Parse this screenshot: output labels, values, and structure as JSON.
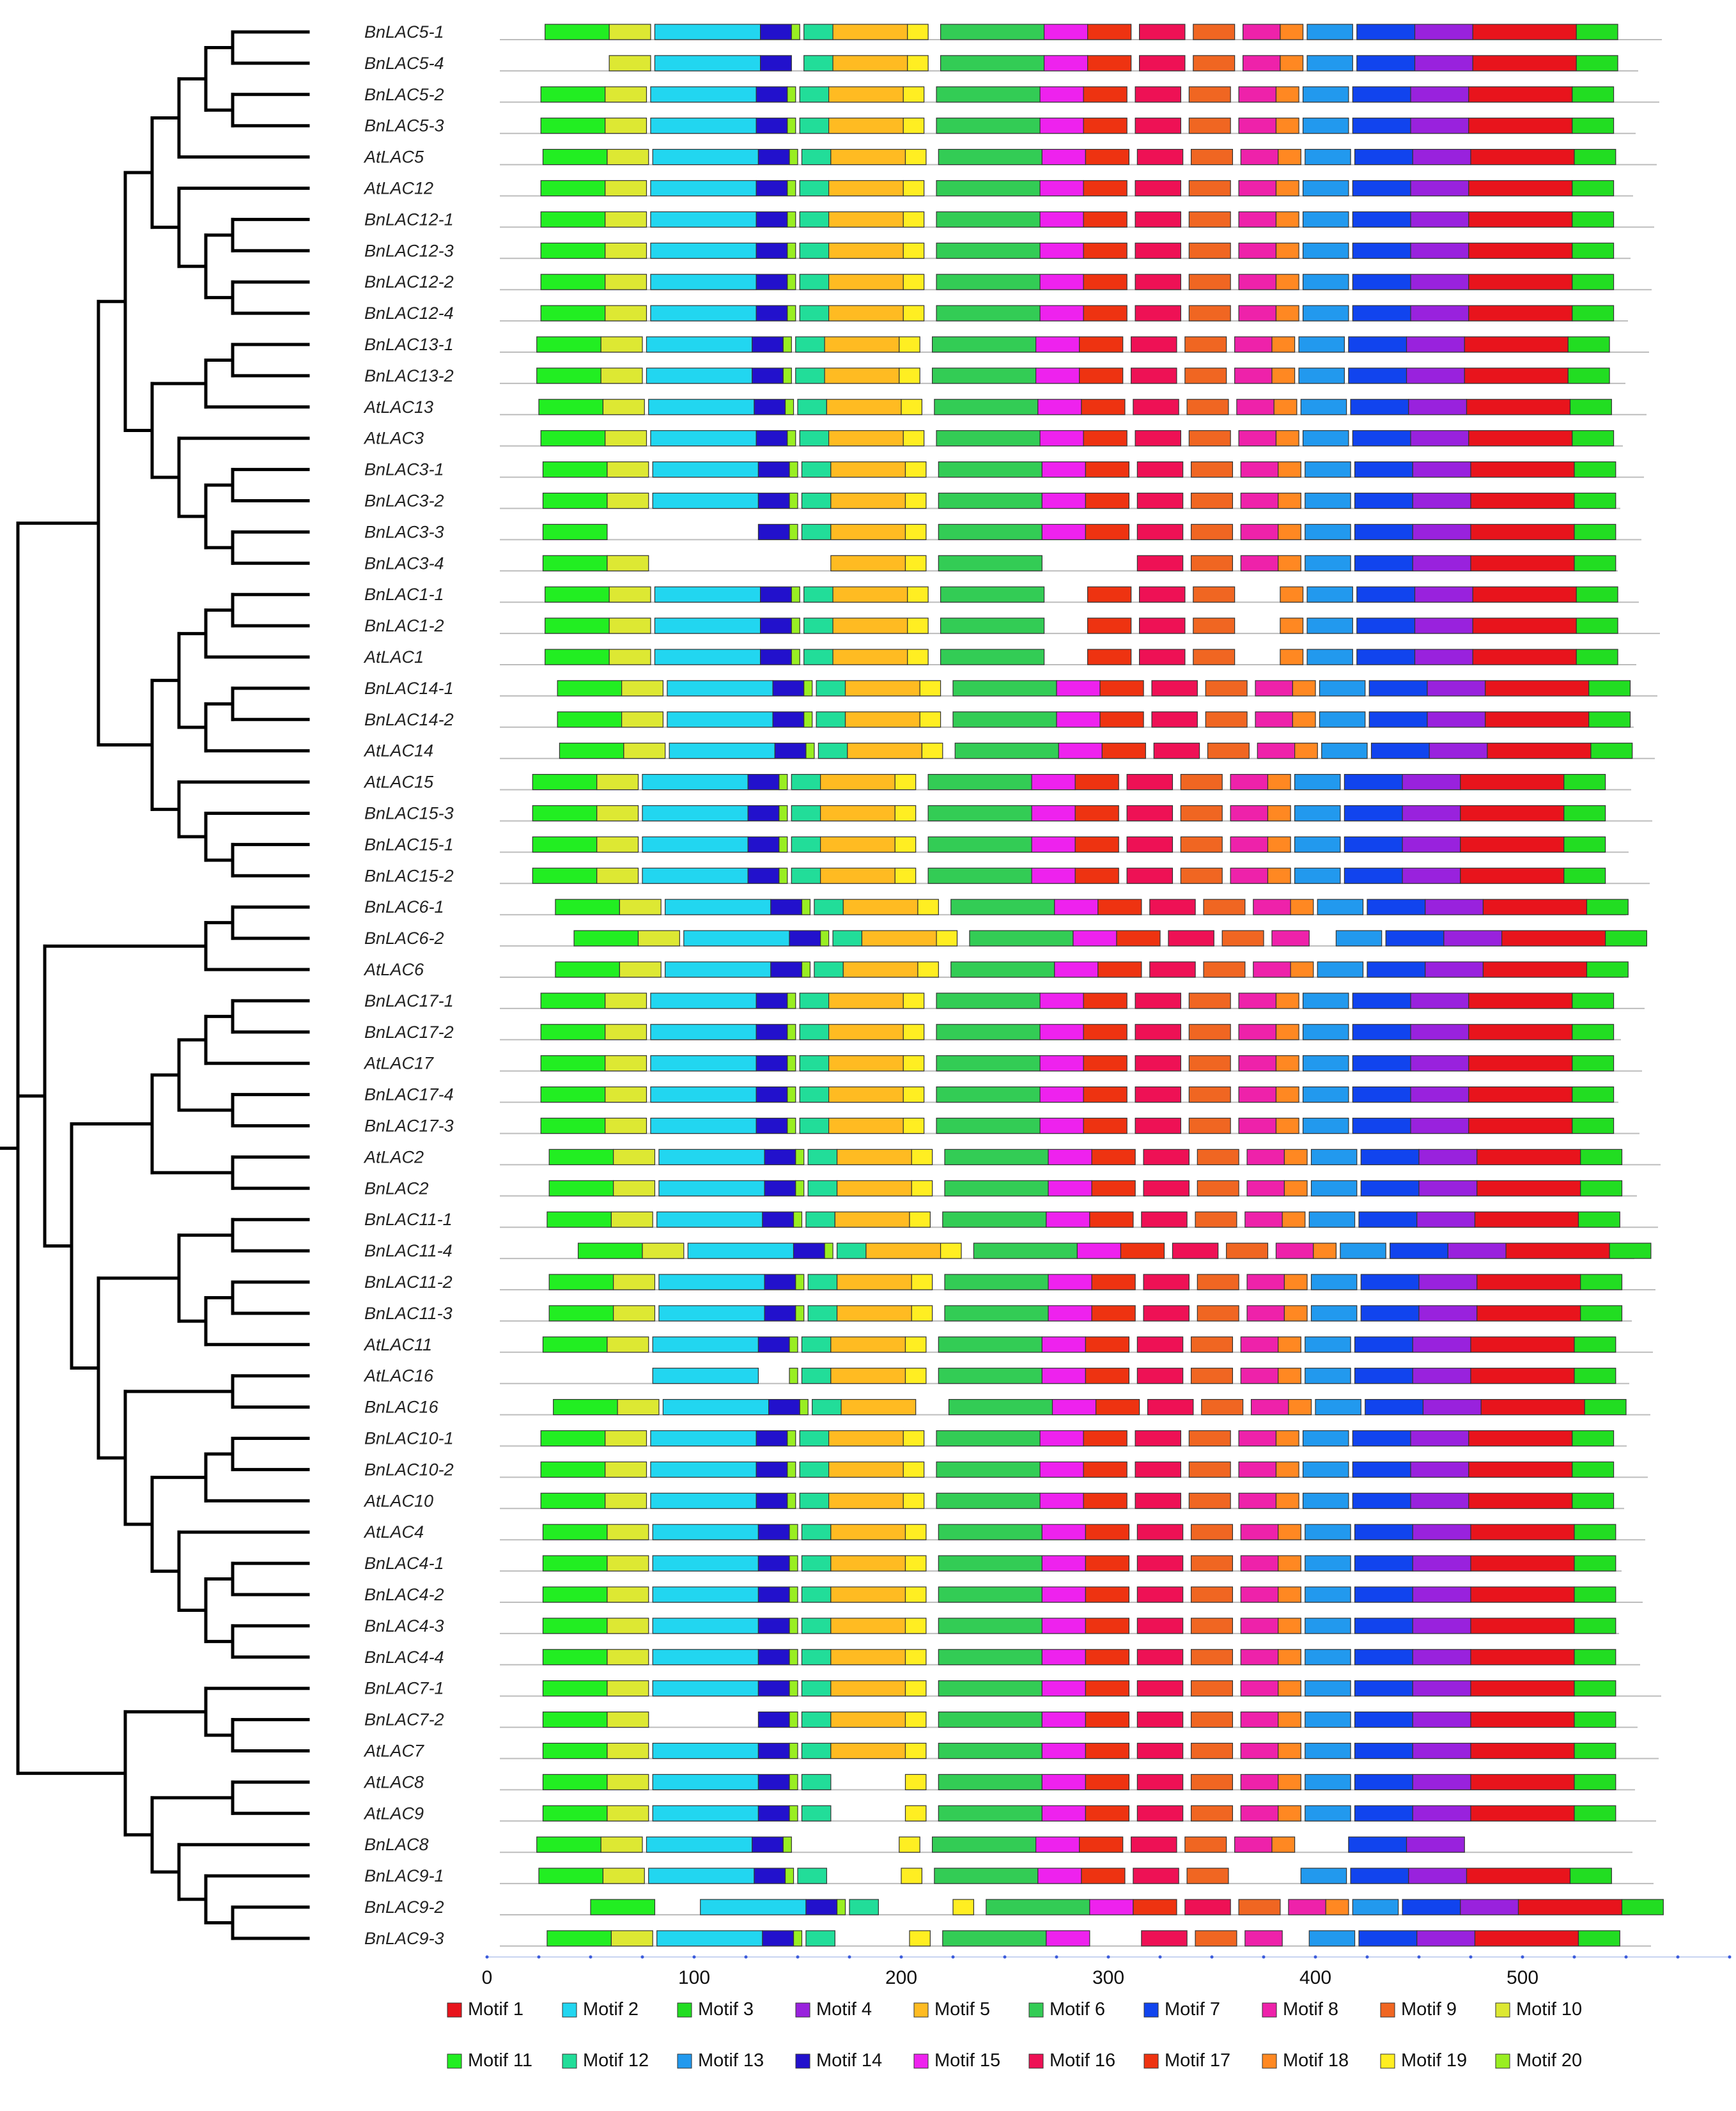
{
  "figure": {
    "type": "phylogeny-motif-diagram",
    "background": "#ffffff"
  },
  "genes": [
    "BnLAC5-1",
    "BnLAC5-4",
    "BnLAC5-2",
    "BnLAC5-3",
    "AtLAC5",
    "AtLAC12",
    "BnLAC12-1",
    "BnLAC12-3",
    "BnLAC12-2",
    "BnLAC12-4",
    "BnLAC13-1",
    "BnLAC13-2",
    "AtLAC13",
    "AtLAC3",
    "BnLAC3-1",
    "BnLAC3-2",
    "BnLAC3-3",
    "BnLAC3-4",
    "BnLAC1-1",
    "BnLAC1-2",
    "AtLAC1",
    "BnLAC14-1",
    "BnLAC14-2",
    "AtLAC14",
    "AtLAC15",
    "BnLAC15-3",
    "BnLAC15-1",
    "BnLAC15-2",
    "BnLAC6-1",
    "BnLAC6-2",
    "AtLAC6",
    "BnLAC17-1",
    "BnLAC17-2",
    "AtLAC17",
    "BnLAC17-4",
    "BnLAC17-3",
    "AtLAC2",
    "BnLAC2",
    "BnLAC11-1",
    "BnLAC11-4",
    "BnLAC11-2",
    "BnLAC11-3",
    "AtLAC11",
    "AtLAC16",
    "BnLAC16",
    "BnLAC10-1",
    "BnLAC10-2",
    "AtLAC10",
    "AtLAC4",
    "BnLAC4-1",
    "BnLAC4-2",
    "BnLAC4-3",
    "BnLAC4-4",
    "BnLAC7-1",
    "BnLAC7-2",
    "AtLAC7",
    "AtLAC8",
    "AtLAC9",
    "BnLAC8",
    "BnLAC9-1",
    "BnLAC9-2",
    "BnLAC9-3"
  ],
  "axis": {
    "ticks": [
      0,
      100,
      200,
      300,
      400,
      500
    ],
    "tick_labels": [
      "0",
      "100",
      "200",
      "300",
      "400",
      "500"
    ],
    "range": [
      0,
      600
    ],
    "color": "#3b5bdb"
  },
  "motifs": [
    {
      "name": "Motif 1",
      "color": "#e8141c"
    },
    {
      "name": "Motif 2",
      "color": "#22d6f0"
    },
    {
      "name": "Motif 3",
      "color": "#22dd22"
    },
    {
      "name": "Motif 4",
      "color": "#9922dd"
    },
    {
      "name": "Motif 5",
      "color": "#ffbb22"
    },
    {
      "name": "Motif 6",
      "color": "#33cc55"
    },
    {
      "name": "Motif 7",
      "color": "#1144ee"
    },
    {
      "name": "Motif 8",
      "color": "#ee22aa"
    },
    {
      "name": "Motif 9",
      "color": "#f06622"
    },
    {
      "name": "Motif 10",
      "color": "#dde833"
    },
    {
      "name": "Motif 11",
      "color": "#22ee22"
    },
    {
      "name": "Motif 12",
      "color": "#22dd99"
    },
    {
      "name": "Motif 13",
      "color": "#2299ee"
    },
    {
      "name": "Motif 14",
      "color": "#2211cc"
    },
    {
      "name": "Motif 15",
      "color": "#ee22ee"
    },
    {
      "name": "Motif 16",
      "color": "#ee1155"
    },
    {
      "name": "Motif 17",
      "color": "#ee3311"
    },
    {
      "name": "Motif 18",
      "color": "#ff8822"
    },
    {
      "name": "Motif 19",
      "color": "#ffee22"
    },
    {
      "name": "Motif 20",
      "color": "#99ee22"
    }
  ],
  "motif_order": [
    11,
    10,
    2,
    14,
    20,
    12,
    5,
    19,
    6,
    15,
    17,
    16,
    9,
    8,
    18,
    13,
    7,
    4,
    1,
    3
  ],
  "motif_widths": [
    31,
    20,
    51,
    15,
    4,
    14,
    36,
    10,
    50,
    21,
    21,
    22,
    20,
    18,
    11,
    22,
    28,
    28,
    50,
    20
  ],
  "motif_gaps": [
    0,
    0,
    2,
    0,
    0,
    2,
    0,
    0,
    6,
    0,
    0,
    4,
    4,
    4,
    0,
    2,
    2,
    0,
    0,
    0
  ],
  "gene_offsets": [
    28,
    28,
    26,
    26,
    27,
    26,
    26,
    26,
    26,
    26,
    24,
    24,
    25,
    26,
    27,
    27,
    27,
    27,
    28,
    28,
    28,
    34,
    34,
    35,
    22,
    22,
    22,
    22,
    33,
    42,
    33,
    26,
    26,
    26,
    26,
    26,
    30,
    30,
    29,
    44,
    30,
    30,
    27,
    27,
    32,
    26,
    26,
    26,
    27,
    27,
    27,
    27,
    27,
    27,
    27,
    27,
    27,
    27,
    24,
    25,
    50,
    29
  ],
  "missing_motifs": {
    "BnLAC5-4": [
      11,
      20
    ],
    "BnLAC3-3": [
      2,
      10
    ],
    "BnLAC3-4": [
      2,
      14,
      12,
      20,
      15,
      17
    ],
    "AtLAC16": [
      11,
      10,
      14
    ],
    "BnLAC16": [
      19
    ],
    "BnLAC1-1": [
      8,
      15
    ],
    "BnLAC1-2": [
      8,
      15
    ],
    "AtLAC1": [
      8,
      15
    ],
    "BnLAC6-2": [
      18
    ],
    "BnLAC7-2": [
      2
    ],
    "AtLAC8": [
      5
    ],
    "AtLAC9": [
      5
    ],
    "BnLAC8": [
      12,
      5,
      13,
      1,
      3
    ],
    "BnLAC9-1": [
      5,
      8,
      18
    ],
    "BnLAC9-2": [
      10,
      5
    ],
    "BnLAC9-3": [
      5,
      17,
      18
    ]
  },
  "tree": {
    "children": [
      {
        "children": [
          {
            "children": [
              {
                "children": [
                  {
                    "children": [
                      {
                        "children": [
                          {
                            "children": [
                              {
                                "leaf": 0
                              },
                              {
                                "leaf": 1
                              }
                            ]
                          },
                          {
                            "children": [
                              {
                                "leaf": 2
                              },
                              {
                                "leaf": 3
                              }
                            ]
                          }
                        ]
                      },
                      {
                        "leaf": 4
                      }
                    ]
                  },
                  {
                    "children": [
                      {
                        "leaf": 5
                      },
                      {
                        "children": [
                          {
                            "children": [
                              {
                                "leaf": 6
                              },
                              {
                                "leaf": 7
                              }
                            ]
                          },
                          {
                            "children": [
                              {
                                "leaf": 8
                              },
                              {
                                "leaf": 9
                              }
                            ]
                          }
                        ]
                      }
                    ]
                  }
                ]
              },
              {
                "children": [
                  {
                    "children": [
                      {
                        "children": [
                          {
                            "leaf": 10
                          },
                          {
                            "leaf": 11
                          }
                        ]
                      },
                      {
                        "leaf": 12
                      }
                    ]
                  },
                  {
                    "children": [
                      {
                        "leaf": 13
                      },
                      {
                        "children": [
                          {
                            "children": [
                              {
                                "leaf": 14
                              },
                              {
                                "leaf": 15
                              }
                            ]
                          },
                          {
                            "children": [
                              {
                                "leaf": 16
                              },
                              {
                                "leaf": 17
                              }
                            ]
                          }
                        ]
                      }
                    ]
                  }
                ]
              }
            ]
          },
          {
            "children": [
              {
                "children": [
                  {
                    "children": [
                      {
                        "children": [
                          {
                            "leaf": 18
                          },
                          {
                            "leaf": 19
                          }
                        ]
                      },
                      {
                        "leaf": 20
                      }
                    ]
                  },
                  {
                    "children": [
                      {
                        "children": [
                          {
                            "leaf": 21
                          },
                          {
                            "leaf": 22
                          }
                        ]
                      },
                      {
                        "leaf": 23
                      }
                    ]
                  }
                ]
              },
              {
                "children": [
                  {
                    "leaf": 24
                  },
                  {
                    "children": [
                      {
                        "leaf": 25
                      },
                      {
                        "children": [
                          {
                            "leaf": 26
                          },
                          {
                            "leaf": 27
                          }
                        ]
                      }
                    ]
                  }
                ]
              }
            ]
          }
        ]
      },
      {
        "children": [
          {
            "children": [
              {
                "children": [
                  {
                    "leaf": 28
                  },
                  {
                    "leaf": 29
                  }
                ]
              },
              {
                "leaf": 30
              }
            ]
          },
          {
            "children": [
              {
                "children": [
                  {
                    "children": [
                      {
                        "children": [
                          {
                            "children": [
                              {
                                "leaf": 31
                              },
                              {
                                "leaf": 32
                              }
                            ]
                          },
                          {
                            "leaf": 33
                          }
                        ]
                      },
                      {
                        "children": [
                          {
                            "leaf": 34
                          },
                          {
                            "leaf": 35
                          }
                        ]
                      }
                    ]
                  },
                  {
                    "children": [
                      {
                        "leaf": 36
                      },
                      {
                        "leaf": 37
                      }
                    ]
                  }
                ]
              },
              {
                "children": [
                  {
                    "children": [
                      {
                        "children": [
                          {
                            "leaf": 38
                          },
                          {
                            "leaf": 39
                          }
                        ]
                      },
                      {
                        "children": [
                          {
                            "children": [
                              {
                                "leaf": 40
                              },
                              {
                                "leaf": 41
                              }
                            ]
                          },
                          {
                            "leaf": 42
                          }
                        ]
                      }
                    ]
                  },
                  {
                    "children": [
                      {
                        "children": [
                          {
                            "leaf": 43
                          },
                          {
                            "leaf": 44
                          }
                        ]
                      },
                      {
                        "children": [
                          {
                            "children": [
                              {
                                "children": [
                                  {
                                    "leaf": 45
                                  },
                                  {
                                    "leaf": 46
                                  }
                                ]
                              },
                              {
                                "leaf": 47
                              }
                            ]
                          },
                          {
                            "children": [
                              {
                                "leaf": 48
                              },
                              {
                                "children": [
                                  {
                                    "children": [
                                      {
                                        "leaf": 49
                                      },
                                      {
                                        "leaf": 50
                                      }
                                    ]
                                  },
                                  {
                                    "children": [
                                      {
                                        "leaf": 51
                                      },
                                      {
                                        "leaf": 52
                                      }
                                    ]
                                  }
                                ]
                              }
                            ]
                          }
                        ]
                      }
                    ]
                  }
                ]
              }
            ]
          }
        ]
      },
      {
        "children": [
          {
            "children": [
              {
                "leaf": 53
              },
              {
                "children": [
                  {
                    "leaf": 54
                  },
                  {
                    "leaf": 55
                  }
                ]
              }
            ]
          },
          {
            "children": [
              {
                "children": [
                  {
                    "leaf": 56
                  },
                  {
                    "leaf": 57
                  }
                ]
              },
              {
                "children": [
                  {
                    "leaf": 58
                  },
                  {
                    "children": [
                      {
                        "leaf": 59
                      },
                      {
                        "children": [
                          {
                            "leaf": 60
                          },
                          {
                            "leaf": 61
                          }
                        ]
                      }
                    ]
                  }
                ]
              }
            ]
          }
        ]
      }
    ]
  }
}
